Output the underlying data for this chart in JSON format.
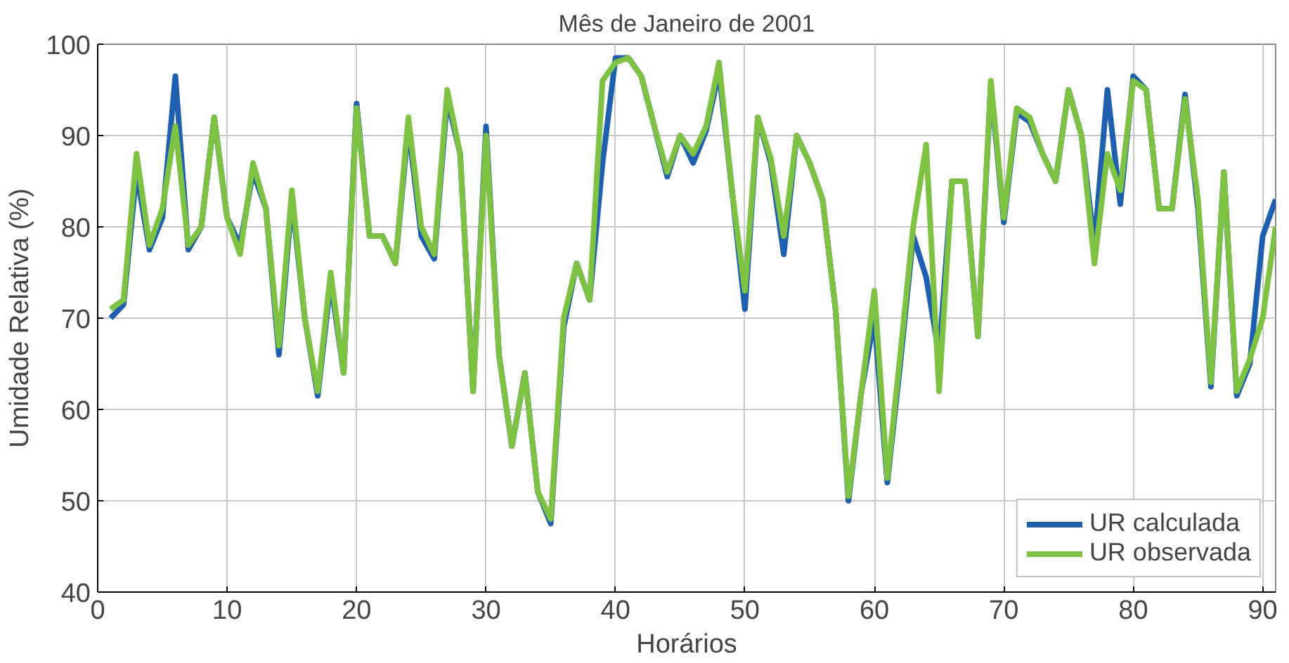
{
  "chart_data": {
    "type": "line",
    "title": "Mês de Janeiro de 2001",
    "xlabel": "Horários",
    "ylabel": "Umidade Relativa (%)",
    "x": [
      1,
      2,
      3,
      4,
      5,
      6,
      7,
      8,
      9,
      10,
      11,
      12,
      13,
      14,
      15,
      16,
      17,
      18,
      19,
      20,
      21,
      22,
      23,
      24,
      25,
      26,
      27,
      28,
      29,
      30,
      31,
      32,
      33,
      34,
      35,
      36,
      37,
      38,
      39,
      40,
      41,
      42,
      43,
      44,
      45,
      46,
      47,
      48,
      49,
      50,
      51,
      52,
      53,
      54,
      55,
      56,
      57,
      58,
      59,
      60,
      61,
      62,
      63,
      64,
      65,
      66,
      67,
      68,
      69,
      70,
      71,
      72,
      73,
      74,
      75,
      76,
      77,
      78,
      79,
      80,
      81,
      82,
      83,
      84,
      85,
      86,
      87,
      88,
      89,
      90,
      91
    ],
    "series": [
      {
        "name": "UR calculada",
        "color": "#1f5fb0",
        "values": [
          70,
          71.5,
          86,
          77.5,
          81,
          96.5,
          77.5,
          80,
          92,
          81,
          78,
          86,
          82,
          66,
          83,
          70,
          61.5,
          74,
          64,
          93.5,
          79,
          79,
          76,
          91,
          79,
          76.5,
          94,
          88,
          62,
          91,
          66,
          56,
          64,
          51,
          47.5,
          69,
          76,
          72,
          87,
          98.5,
          98.5,
          96.5,
          91,
          85.5,
          90,
          87,
          90.5,
          97,
          84,
          71,
          92,
          87,
          77,
          90,
          87,
          83,
          71,
          50,
          62,
          70,
          52,
          65,
          79,
          74.5,
          66,
          85,
          85,
          68,
          95.5,
          80.5,
          92.5,
          91.5,
          88,
          85,
          95,
          90,
          78,
          95,
          82.5,
          96.5,
          95,
          82,
          82,
          94.5,
          82,
          62.5,
          86,
          61.5,
          65,
          79,
          83
        ]
      },
      {
        "name": "UR observada",
        "color": "#7dc242",
        "values": [
          71,
          72,
          88,
          78,
          82,
          91,
          78,
          80,
          92,
          81,
          77,
          87,
          82,
          67,
          84,
          70,
          62,
          75,
          64,
          93,
          79,
          79,
          76,
          92,
          80,
          77,
          95,
          88,
          62,
          90,
          66,
          56,
          64,
          51,
          48,
          70,
          76,
          72,
          96,
          98,
          98.5,
          96.5,
          91,
          86,
          90,
          88,
          91,
          98,
          84,
          73,
          92,
          87.5,
          79,
          90,
          87,
          83,
          71,
          50.5,
          62,
          73,
          52.5,
          66,
          80,
          89,
          62,
          85,
          85,
          68,
          96,
          81,
          93,
          92,
          88,
          85,
          95,
          90,
          76,
          88,
          84,
          96,
          95,
          82,
          82,
          94,
          83,
          63,
          86,
          62,
          65.5,
          70,
          80
        ]
      }
    ],
    "xlim": [
      0,
      91
    ],
    "xticks": [
      0,
      10,
      20,
      30,
      40,
      50,
      60,
      70,
      80,
      90
    ],
    "ylim": [
      40,
      100
    ],
    "yticks": [
      40,
      50,
      60,
      70,
      80,
      90,
      100
    ],
    "grid": true,
    "legend": "bottom right",
    "line_style": "solid",
    "marker": "none"
  }
}
